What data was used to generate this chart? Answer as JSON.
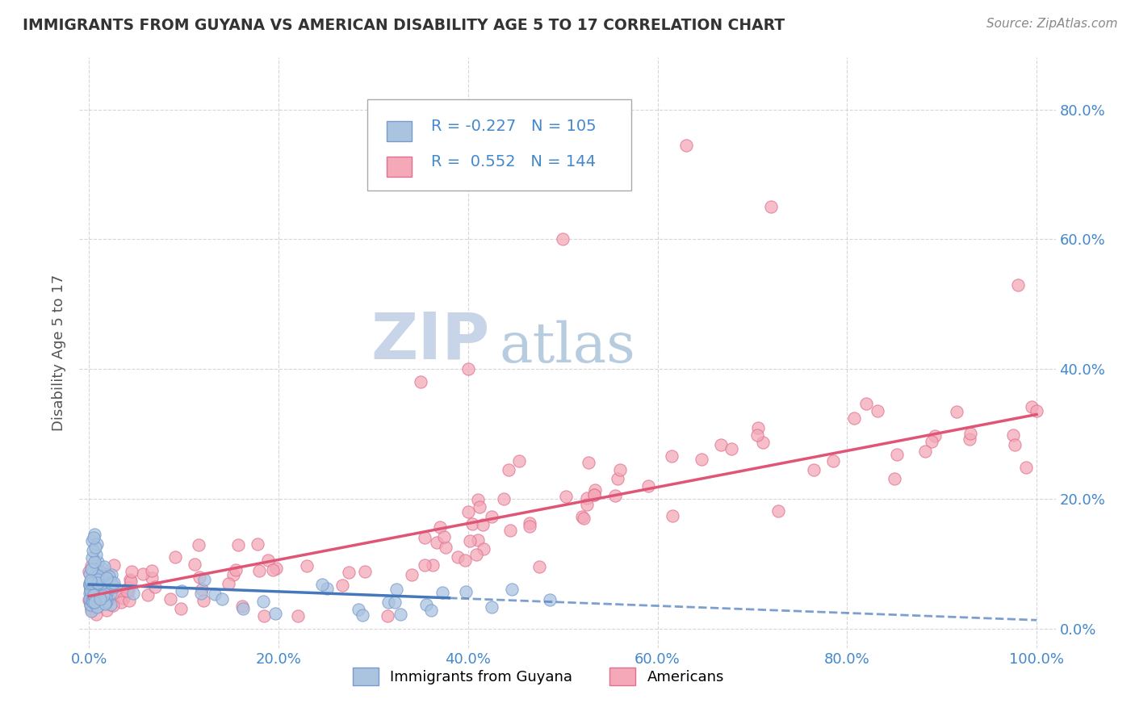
{
  "title": "IMMIGRANTS FROM GUYANA VS AMERICAN DISABILITY AGE 5 TO 17 CORRELATION CHART",
  "source": "Source: ZipAtlas.com",
  "ylabel": "Disability Age 5 to 17",
  "xlim": [
    -0.01,
    1.02
  ],
  "ylim": [
    -0.03,
    0.88
  ],
  "xticks": [
    0.0,
    0.2,
    0.4,
    0.6,
    0.8,
    1.0
  ],
  "yticks": [
    0.0,
    0.2,
    0.4,
    0.6,
    0.8
  ],
  "xticklabels": [
    "0.0%",
    "20.0%",
    "40.0%",
    "60.0%",
    "80.0%",
    "100.0%"
  ],
  "yticklabels_left": [
    "",
    "",
    "",
    "",
    ""
  ],
  "yticklabels_right": [
    "0.0%",
    "20.0%",
    "40.0%",
    "60.0%",
    "80.0%"
  ],
  "legend_R1": "-0.227",
  "legend_N1": "105",
  "legend_R2": "0.552",
  "legend_N2": "144",
  "blue_face_color": "#aac4e0",
  "blue_edge_color": "#7799cc",
  "pink_face_color": "#f4a8b8",
  "pink_edge_color": "#e07090",
  "blue_line_color": "#4477bb",
  "pink_line_color": "#e05575",
  "title_color": "#333333",
  "axis_label_color": "#555555",
  "tick_color": "#4488cc",
  "legend_text_color": "#4488cc",
  "grid_color": "#cccccc",
  "watermark_zip_color": "#c8d4e8",
  "watermark_atlas_color": "#b8cce0",
  "background_color": "#ffffff"
}
